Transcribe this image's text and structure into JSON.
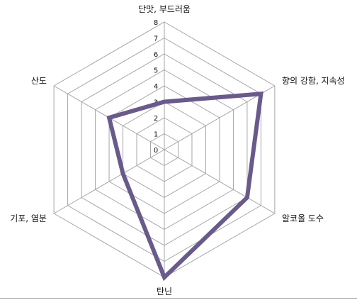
{
  "chart_data": {
    "type": "radar",
    "axes": [
      "단맛, 부드러움",
      "향의 강함, 지속성",
      "알코올 도수",
      "탄닌",
      "기포, 염분",
      "산도"
    ],
    "tick_labels": [
      "0",
      "1",
      "2",
      "3",
      "4",
      "5",
      "6",
      "7",
      "8"
    ],
    "range": [
      0,
      8
    ],
    "grid": true,
    "series": [
      {
        "values": [
          3,
          7,
          6,
          8,
          3,
          4
        ],
        "color": "#6a5a8c"
      }
    ],
    "colors": {
      "grid": "#a6a6a6",
      "text": "#111111"
    }
  }
}
